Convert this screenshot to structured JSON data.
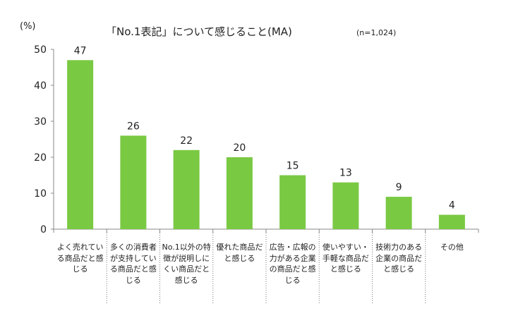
{
  "chart_data": {
    "type": "bar",
    "title": "「No.1表記」について感じること(MA)",
    "note": "(n=1,024)",
    "ylabel": "(%)",
    "xlabel": "",
    "ylim": [
      0,
      50
    ],
    "yticks": [
      0,
      10,
      20,
      30,
      40,
      50
    ],
    "grid": false,
    "categories": [
      "よく売れている商品だと感じる",
      "多くの消費者が支持している商品だと感じる",
      "No.1以外の特徴が説明しにくい商品だと感じる",
      "優れた商品だと感じる",
      "広告・広報の力がある企業の商品だと感じる",
      "使いやすい・手軽な商品だと感じる",
      "技術力のある企業の商品だと感じる",
      "その他"
    ],
    "values": [
      47,
      26,
      22,
      20,
      15,
      13,
      9,
      4
    ],
    "bar_color": "#7ac943"
  }
}
